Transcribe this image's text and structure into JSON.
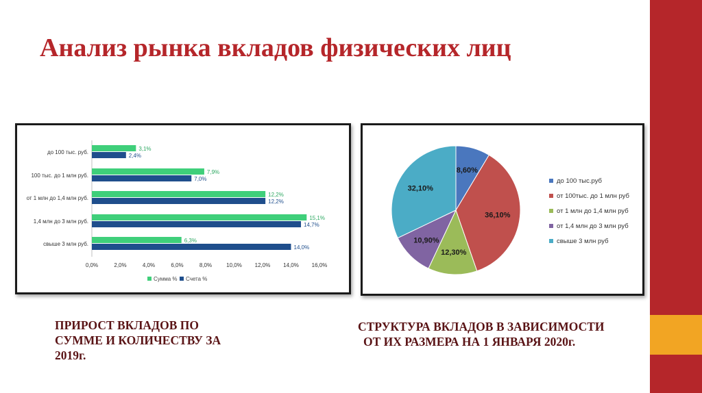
{
  "slide": {
    "title": "Анализ рынка вкладов физических лиц",
    "colors": {
      "title": "#b5262a",
      "caption": "#5a1416",
      "side_red": "#b5262a",
      "side_orange": "#f2a523"
    }
  },
  "captions": {
    "left": [
      "ПРИРОСТ ВКЛАДОВ ПО",
      "СУММЕ И КОЛИЧЕСТВУ ЗА",
      "2019г."
    ],
    "right": [
      "СТРУКТУРА ВКЛАДОВ В ЗАВИСИМОСТИ",
      "ОТ ИХ РАЗМЕРА НА 1 ЯНВАРЯ 2020г."
    ]
  },
  "chart_data": [
    {
      "type": "bar",
      "orientation": "horizontal",
      "categories": [
        "до 100 тыс. руб.",
        "100 тыс. до 1 млн руб.",
        "от 1 млн до 1,4 млн руб.",
        "1,4 млн до 3 млн руб.",
        "свыше 3 млн руб."
      ],
      "series": [
        {
          "name": "Сумма %",
          "color": "#3fcf7a",
          "values": [
            3.1,
            7.9,
            12.2,
            15.1,
            6.3
          ],
          "labels": [
            "3,1%",
            "7,9%",
            "12,2%",
            "15,1%",
            "6,3%"
          ]
        },
        {
          "name": "Счета %",
          "color": "#1f4e8c",
          "values": [
            2.4,
            7.0,
            12.2,
            14.7,
            14.0
          ],
          "labels": [
            "2,4%",
            "7,0%",
            "12,2%",
            "14,7%",
            "14,0%"
          ]
        }
      ],
      "xlim": [
        0,
        16
      ],
      "xticks": [
        "0,0%",
        "2,0%",
        "4,0%",
        "6,0%",
        "8,0%",
        "10,0%",
        "12,0%",
        "14,0%",
        "16,0%"
      ],
      "grid": false,
      "legend": "bottom"
    },
    {
      "type": "pie",
      "slices": [
        {
          "name": "до 100 тыс.руб",
          "value": 8.6,
          "label": "8,60%",
          "color": "#4a77be"
        },
        {
          "name": "от 100тыс. до 1 млн руб",
          "value": 36.1,
          "label": "36,10%",
          "color": "#c0504d"
        },
        {
          "name": "от 1 млн до 1,4 млн руб",
          "value": 12.3,
          "label": "12,30%",
          "color": "#9bbb59"
        },
        {
          "name": "от 1,4 млн до 3 млн руб",
          "value": 10.9,
          "label": "10,90%",
          "color": "#8064a2"
        },
        {
          "name": "свыше 3 млн руб",
          "value": 32.1,
          "label": "32,10%",
          "color": "#4bacc6"
        }
      ],
      "legend": "right"
    }
  ]
}
